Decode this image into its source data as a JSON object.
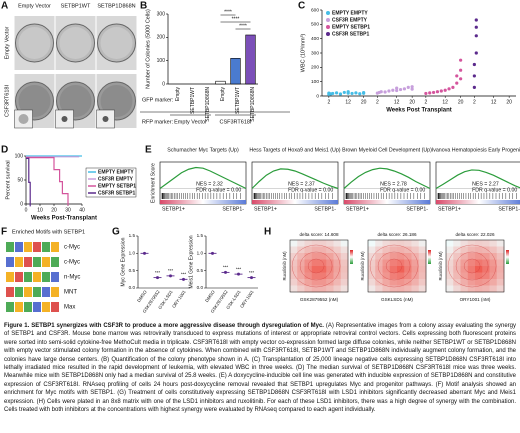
{
  "panel_a": {
    "letter": "A",
    "columns": [
      "Empty Vector",
      "SETBP1WT",
      "SETBP1D868N"
    ],
    "rows": [
      "Empty Vector",
      "CSF3RT618I"
    ]
  },
  "panel_b": {
    "letter": "B",
    "type": "bar",
    "ylabel": "Number of Colonies (5000 Cells)",
    "categories": [
      "Empty",
      "SETBP1WT",
      "SETBP1D868N",
      "Empty",
      "SETBP1WT",
      "SETBP1D868N"
    ],
    "values": [
      0,
      0,
      0,
      12,
      110,
      210
    ],
    "colors": [
      "#ffffff",
      "#ffffff",
      "#ffffff",
      "#ffffff",
      "#4a7bd0",
      "#7b4fb8"
    ],
    "ylim": [
      0,
      300
    ],
    "yticks": [
      0,
      100,
      200,
      300
    ],
    "gfp_label": "GFP marker:",
    "rfp_label": "RFP marker:",
    "groups": [
      "Empty Vector",
      "CSF3RT618I"
    ],
    "significance": [
      "****",
      "****",
      "****"
    ]
  },
  "panel_c": {
    "letter": "C",
    "type": "scatter",
    "ylabel": "WBC (10³/mm³)",
    "xlabel": "Weeks Post Transplant",
    "ylim": [
      0,
      600
    ],
    "yticks": [
      0,
      100,
      200,
      300,
      400,
      500,
      600
    ],
    "xlim": [
      0,
      22
    ],
    "xticks": [
      2,
      12,
      20
    ],
    "series": [
      {
        "name": "EMPTY EMPTY",
        "color": "#45bde6",
        "x": [
          2,
          2,
          3,
          4,
          6,
          8,
          10,
          12,
          12,
          14,
          16,
          18,
          20,
          20
        ],
        "values": [
          12,
          20,
          15,
          18,
          22,
          14,
          25,
          20,
          30,
          18,
          22,
          16,
          24,
          19
        ]
      },
      {
        "name": "CSF3R EMPTY",
        "color": "#c79fdc",
        "x": [
          2,
          3,
          4,
          6,
          8,
          10,
          12,
          12,
          14,
          16,
          18,
          20,
          20
        ],
        "values": [
          20,
          25,
          30,
          28,
          35,
          40,
          38,
          55,
          45,
          50,
          60,
          48,
          65
        ]
      },
      {
        "name": "EMPTY SETBP1",
        "color": "#d4559d",
        "x": [
          2,
          4,
          6,
          8,
          10,
          12,
          14,
          16,
          18,
          18,
          20,
          20,
          20
        ],
        "values": [
          18,
          22,
          25,
          30,
          35,
          40,
          50,
          60,
          90,
          140,
          180,
          250,
          120
        ]
      },
      {
        "name": "CSF3R SETBP1",
        "color": "#5b2a8c",
        "x": [
          2,
          2,
          2,
          3,
          3,
          3,
          3
        ],
        "values": [
          60,
          140,
          220,
          300,
          420,
          480,
          530
        ]
      }
    ]
  },
  "panel_d": {
    "letter": "D",
    "type": "line",
    "ylabel": "Percent survival",
    "xlabel": "Weeks Post-Transplant",
    "xlim": [
      0,
      40
    ],
    "xticks": [
      0,
      10,
      20,
      30,
      40
    ],
    "ylim": [
      0,
      100
    ],
    "yticks": [
      0,
      50,
      100
    ],
    "series": [
      {
        "name": "EMPTY EMPTY",
        "color": "#45bde6",
        "x": [
          0,
          40
        ],
        "values": [
          100,
          100
        ]
      },
      {
        "name": "CSF3R EMPTY",
        "color": "#c79fdc",
        "x": [
          0,
          38
        ],
        "values": [
          100,
          100
        ]
      },
      {
        "name": "EMPTY SETBP1",
        "color": "#d4559d",
        "x": [
          0,
          20,
          20,
          24,
          24,
          26,
          26,
          30,
          30
        ],
        "values": [
          100,
          100,
          75,
          75,
          50,
          50,
          25,
          25,
          0
        ]
      },
      {
        "name": "CSF3R SETBP1",
        "color": "#5b2a8c",
        "x": [
          0,
          2,
          2,
          3,
          3
        ],
        "values": [
          100,
          100,
          50,
          50,
          0
        ]
      }
    ]
  },
  "panel_e": {
    "letter": "E",
    "ylabel": "Enrichment Score",
    "pos_label": "SETBP1+",
    "neg_label": "SETBP1-",
    "ylim": [
      -0.1,
      0.7
    ],
    "plots": [
      {
        "title": "Schumacher Myc Targets (Up)",
        "nes": "NES = 2.32",
        "fdr": "FDR q-value = 0.00",
        "curve": [
          0,
          0.15,
          0.3,
          0.45,
          0.55,
          0.6,
          0.58,
          0.5,
          0.4,
          0.3,
          0.2,
          0.1,
          0
        ]
      },
      {
        "title": "Hess Targets of Hoxa9 and Meis1 (Up)",
        "nes": "NES = 2.37",
        "fdr": "FDR q-value = 0.00",
        "curve": [
          0,
          0.2,
          0.38,
          0.5,
          0.56,
          0.55,
          0.5,
          0.42,
          0.33,
          0.24,
          0.15,
          0.07,
          0
        ]
      },
      {
        "title": "Brown Myeloid Cell Development (Up)",
        "nes": "NES = 2.78",
        "fdr": "FDR q-value = 0.00",
        "curve": [
          0,
          0.18,
          0.34,
          0.46,
          0.54,
          0.58,
          0.56,
          0.5,
          0.42,
          0.32,
          0.2,
          0.1,
          0
        ]
      },
      {
        "title": "Ivanova Hematopoiesis Early Progenitor",
        "nes": "NES = 2.27",
        "fdr": "FDR q-value = 0.00",
        "curve": [
          0,
          0.12,
          0.25,
          0.38,
          0.48,
          0.53,
          0.52,
          0.46,
          0.38,
          0.28,
          0.18,
          0.08,
          0
        ]
      }
    ]
  },
  "panel_f": {
    "letter": "F",
    "title": "Enriched Motifs with SETBP1",
    "motifs": [
      "c-Myc",
      "c-Myc",
      "n-Myc",
      "MNT",
      "Max"
    ]
  },
  "panel_g": {
    "letter": "G",
    "stars": "***",
    "ylim": [
      0,
      1.5
    ],
    "yticks": [
      {
        "value": 0,
        "label": "0.0"
      },
      {
        "value": 0.5,
        "label": "0.5"
      },
      {
        "value": 1,
        "label": "1.0"
      },
      {
        "value": 1.5,
        "label": "1.5"
      }
    ],
    "plots": [
      {
        "ylabel": "Myc Gene Expression",
        "categories": [
          "DMSO",
          "GSK2879552",
          "GSK-LSD1",
          "ORY-1001"
        ],
        "values": [
          1.0,
          0.3,
          0.35,
          0.25
        ],
        "color": "#5b2a8c"
      },
      {
        "ylabel": "Meis1 Gene Expression",
        "categories": [
          "DMSO",
          "GSK2879552",
          "GSK-LSD1",
          "ORY-1001"
        ],
        "values": [
          1.0,
          0.45,
          0.4,
          0.3
        ],
        "color": "#5b2a8c"
      }
    ]
  },
  "panel_h": {
    "letter": "H",
    "ylabel": "Ruxolitinib (nM)",
    "plots": [
      {
        "title": "delta score: 14.608",
        "xlabel": "GSK2879552 (nM)"
      },
      {
        "title": "delta score: 26.186",
        "xlabel": "GSKLSD1 (nM)"
      },
      {
        "title": "delta score: 22.026",
        "xlabel": "ORY1001 (nM)"
      }
    ]
  },
  "caption": {
    "title": "Figure 1. SETBP1 synergizes with CSF3R to produce a more aggressive disease through dysregulation of Myc.",
    "body": "(A) Representative images from a colony assay evaluating the synergy of SETBP1 and CSF3R. Mouse bone marrow was retrovirally transduced to express mutations of interest or appropriate retroviral control vectors. Cells expressing both fluorescent proteins were sorted into semi-solid cytokine-free MethoCult media in triplicate. CSF3RT618I with empty vector co-expression formed large diffuse colonies, while neither SETBP1WT or SETBP1D868N with empty vector stimulated colony formation in the absence of cytokines. When combined with CSF3RT618I, SETBP1WT and SETBP1D868N individually augment colony formation, and the colonies have large dense centers. (B) Quantification of the colony phenotype shown in A. (C) Transplantation of 25,000 lineage negative cells expressing SETBP1D868N CSF3RT618I into lethally irradiated mice resulted in the rapid development of leukemia, with elevated WBC in three weeks. (D) The median survival of SETBP1D868N CSF3RT618I mice was three weeks. Meanwhile mice with SETBP1D868N only had a median survival of 25.8 weeks. (E) A doxycycline-inducible cell line was generated with inducible expression of SETBP1D868N and constitutive expression of CSF3RT618I. RNAseq profiling of cells 24 hours post-doxycycline removal revealed that SETBP1 upregulates Myc and progenitor pathways. (F) Motif analysis showed an enrichment for Myc motifs with SETBP1. (G) Treatment of cells constitutively expressing SETBP1D868N CSF3RT618I with LSD1 inhibitors significantly decreased aberrant Myc and Meis1 expression. (H) Cells were plated in an 8x8 matrix with one of the LSD1 inhibitors and ruxolitinib. For each of these LSD1 inhibitors, there was a high degree of synergy with the combination. Cells treated with both inhibitors at the concentrations with highest synergy were evaluated by RNAseq compared to each agent individually."
  }
}
